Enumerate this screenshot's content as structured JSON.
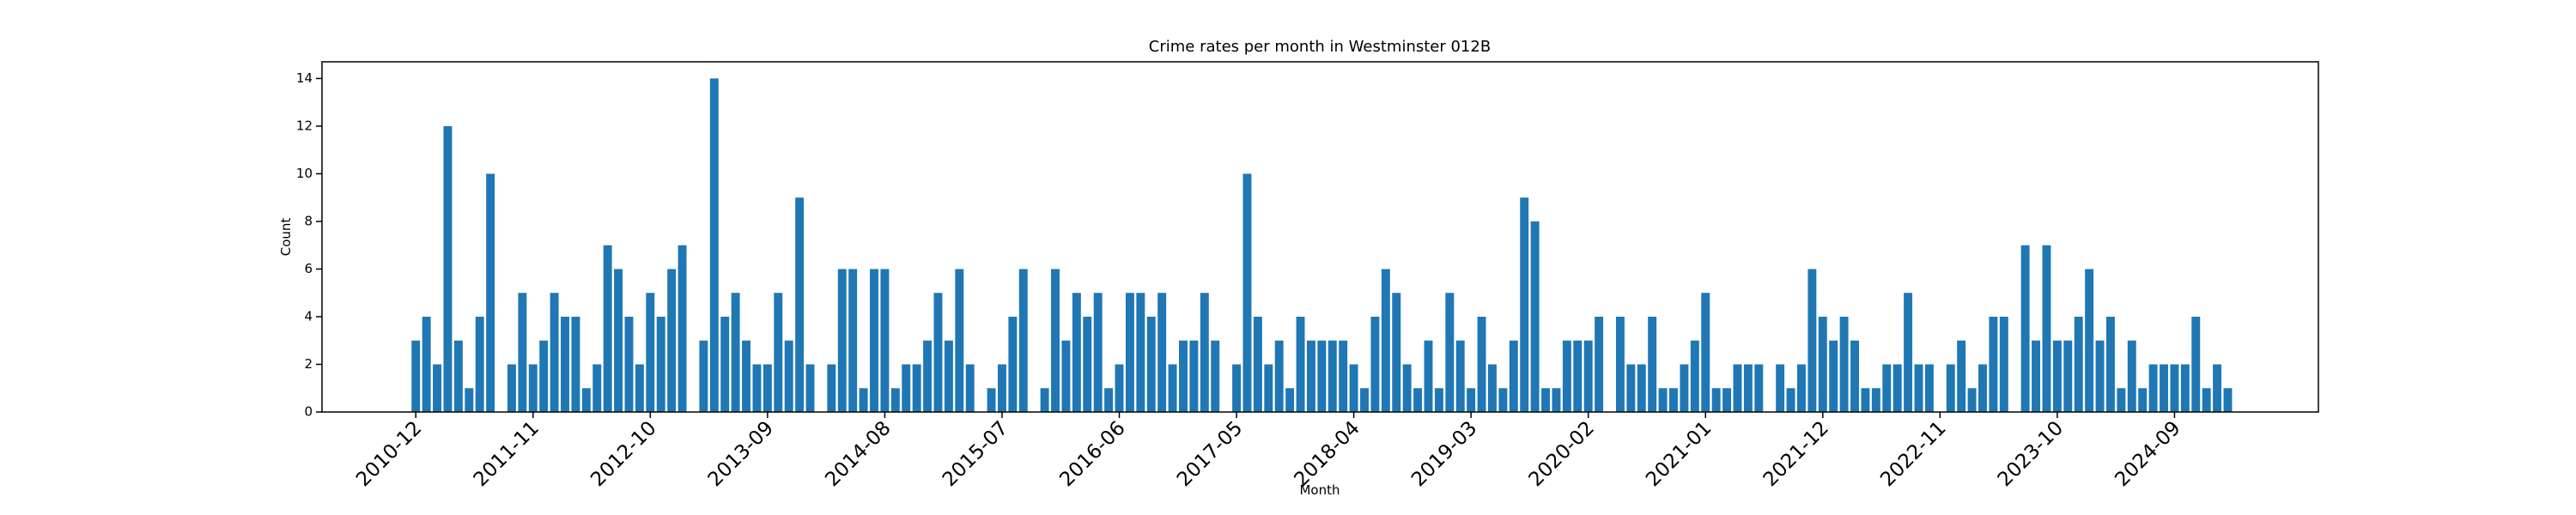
{
  "chart_data": {
    "type": "bar",
    "title": "Crime rates per month in Westminster 012B",
    "x_label": "Month",
    "y_label": "Count",
    "color": "#1f77b4",
    "categories": [
      "2010-12",
      null,
      null,
      null,
      null,
      null,
      null,
      null,
      null,
      null,
      null,
      "2011-11",
      null,
      null,
      null,
      null,
      null,
      null,
      null,
      null,
      null,
      null,
      "2012-10",
      null,
      null,
      null,
      null,
      null,
      null,
      null,
      null,
      null,
      null,
      "2013-09",
      null,
      null,
      null,
      null,
      null,
      null,
      null,
      null,
      null,
      null,
      "2014-08",
      null,
      null,
      null,
      null,
      null,
      null,
      null,
      null,
      null,
      null,
      "2015-07",
      null,
      null,
      null,
      null,
      null,
      null,
      null,
      null,
      null,
      null,
      "2016-06",
      null,
      null,
      null,
      null,
      null,
      null,
      null,
      null,
      null,
      null,
      "2017-05",
      null,
      null,
      null,
      null,
      null,
      null,
      null,
      null,
      null,
      null,
      "2018-04",
      null,
      null,
      null,
      null,
      null,
      null,
      null,
      null,
      null,
      null,
      "2019-03",
      null,
      null,
      null,
      null,
      null,
      null,
      null,
      null,
      null,
      null,
      "2020-02",
      null,
      null,
      null,
      null,
      null,
      null,
      null,
      null,
      null,
      null,
      "2021-01",
      null,
      null,
      null,
      null,
      null,
      null,
      null,
      null,
      null,
      null,
      "2021-12",
      null,
      null,
      null,
      null,
      null,
      null,
      null,
      null,
      null,
      null,
      "2022-11",
      null,
      null,
      null,
      null,
      null,
      null,
      null,
      null,
      null,
      null,
      "2023-10",
      null,
      null,
      null,
      null,
      null,
      null,
      null,
      null,
      null,
      null,
      "2024-09",
      null,
      null,
      null,
      null,
      null
    ],
    "values": [
      3,
      4,
      2,
      12,
      3,
      1,
      4,
      10,
      null,
      2,
      5,
      2,
      3,
      5,
      4,
      4,
      1,
      2,
      7,
      6,
      4,
      2,
      5,
      4,
      6,
      7,
      null,
      3,
      14,
      4,
      5,
      3,
      2,
      2,
      5,
      3,
      9,
      2,
      null,
      2,
      6,
      6,
      1,
      6,
      6,
      1,
      2,
      2,
      3,
      5,
      3,
      6,
      2,
      null,
      1,
      2,
      4,
      6,
      null,
      1,
      6,
      3,
      5,
      4,
      5,
      1,
      2,
      5,
      5,
      4,
      5,
      2,
      3,
      3,
      5,
      3,
      null,
      2,
      10,
      4,
      2,
      3,
      1,
      4,
      3,
      3,
      3,
      3,
      2,
      1,
      4,
      6,
      5,
      2,
      1,
      3,
      1,
      5,
      3,
      1,
      4,
      2,
      1,
      3,
      9,
      8,
      1,
      1,
      3,
      3,
      3,
      4,
      null,
      4,
      2,
      2,
      4,
      1,
      1,
      2,
      3,
      5,
      1,
      1,
      2,
      2,
      2,
      null,
      2,
      1,
      2,
      6,
      4,
      3,
      4,
      3,
      1,
      1,
      2,
      2,
      5,
      2,
      2,
      null,
      2,
      3,
      1,
      2,
      4,
      4,
      null,
      7,
      3,
      7,
      3,
      3,
      4,
      6,
      3,
      4,
      1,
      3,
      1,
      2,
      2,
      2,
      2,
      4,
      1,
      2,
      1
    ],
    "ylim": [
      0,
      14.7
    ],
    "yticks": [
      0,
      2,
      4,
      6,
      8,
      10,
      12,
      14
    ]
  }
}
